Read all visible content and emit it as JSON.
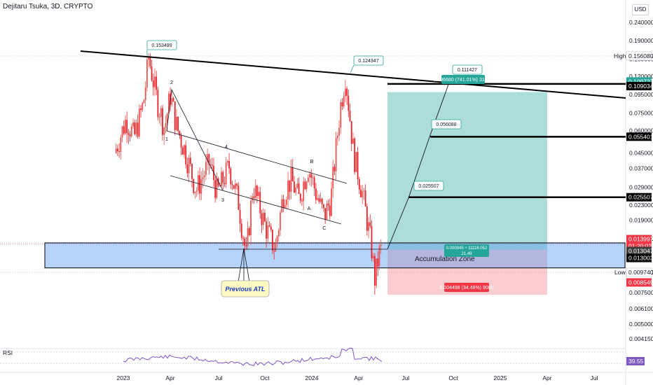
{
  "header": {
    "title": "Dejitaru Tsuka, 3D, CRYPTO",
    "currency": "USD"
  },
  "price_axis": {
    "ticks": [
      "0.240000",
      "0.190000",
      "0.150000",
      "0.120000",
      "0.095000",
      "0.075000",
      "0.060000",
      "0.045000",
      "0.037000",
      "0.029000",
      "0.023000",
      "0.019000",
      "0.015000",
      "0.009740",
      "0.007500",
      "0.006100",
      "0.005000",
      "0.004150"
    ],
    "labels": {
      "high": "High",
      "low": "Low"
    }
  },
  "price_tags": [
    {
      "value": "0.156080",
      "bg": "#ffffff",
      "fg": "#131722",
      "border": "#cccccc"
    },
    {
      "value": "0.109727",
      "bg": "#26a69a",
      "fg": "#ffffff"
    },
    {
      "value": "0.109034",
      "bg": "#000000",
      "fg": "#ffffff"
    },
    {
      "value": "0.055401",
      "bg": "#000000",
      "fg": "#ffffff"
    },
    {
      "value": "0.025507",
      "bg": "#000000",
      "fg": "#ffffff"
    },
    {
      "value": "0.013997",
      "bg": "#f23645",
      "fg": "#ffffff"
    },
    {
      "value": "01:20:02",
      "bg": "#f23645",
      "fg": "#ffffff"
    },
    {
      "value": "0.013047",
      "bg": "#3c3c3c",
      "fg": "#ffffff"
    },
    {
      "value": "0.013003",
      "bg": "#000000",
      "fg": "#ffffff"
    },
    {
      "value": "0.009740",
      "bg": "#ffffff",
      "fg": "#131722",
      "border": "#cccccc"
    },
    {
      "value": "0.008549",
      "bg": "#f23645",
      "fg": "#ffffff"
    }
  ],
  "time_axis": {
    "ticks": [
      "2023",
      "Apr",
      "Jul",
      "Oct",
      "2024",
      "Apr",
      "Jul",
      "Oct",
      "2025",
      "Apr",
      "Jul"
    ]
  },
  "annotations": {
    "callouts": [
      "0.153499",
      "0.124347",
      "0.111427",
      "0.056088",
      "0.025507"
    ],
    "target_label": "0.096680 (741.01%) 31494",
    "position_label_1": "0.000945 ÷ 11116.052",
    "position_label_2": "21.49",
    "stop_label": "0.004498 (34.48%) 9000",
    "zone_label": "Accumulation Zone",
    "previous_atl": "Previous ATL",
    "wave_labels": [
      "2",
      "1",
      "4",
      "3",
      "B",
      "A",
      "C"
    ]
  },
  "rsi": {
    "label": "RSI",
    "value": "39.55"
  },
  "colors": {
    "up": "#26a69a",
    "down": "#ef5350",
    "candle_red": "#e8222b",
    "target_zone": "#26a69a",
    "stop_zone": "#f23645",
    "accumulation": "#5c9df0",
    "rsi_line": "#7e57c2"
  },
  "chart_data": {
    "type": "candlestick",
    "symbol": "Dejitaru Tsuka",
    "interval": "3D",
    "exchange": "CRYPTO",
    "y_scale": "log",
    "ylim": [
      0.0037,
      0.3
    ],
    "x_range": [
      "2022-11",
      "2025-09"
    ],
    "series": [
      {
        "name": "price_path",
        "points": [
          [
            "2022-12-18",
            0.045
          ],
          [
            "2023-01-10",
            0.07
          ],
          [
            "2023-01-25",
            0.055
          ],
          [
            "2023-02-12",
            0.085
          ],
          [
            "2023-02-22",
            0.1535
          ],
          [
            "2023-03-10",
            0.09
          ],
          [
            "2023-03-25",
            0.062
          ],
          [
            "2023-04-05",
            0.095
          ],
          [
            "2023-04-18",
            0.062
          ],
          [
            "2023-05-05",
            0.045
          ],
          [
            "2023-05-25",
            0.028
          ],
          [
            "2023-06-20",
            0.04
          ],
          [
            "2023-07-05",
            0.027
          ],
          [
            "2023-07-28",
            0.038
          ],
          [
            "2023-08-15",
            0.024
          ],
          [
            "2023-08-30",
            0.012
          ],
          [
            "2023-09-12",
            0.03
          ],
          [
            "2023-10-05",
            0.018
          ],
          [
            "2023-10-25",
            0.013
          ],
          [
            "2023-11-10",
            0.027
          ],
          [
            "2023-11-25",
            0.032
          ],
          [
            "2023-12-10",
            0.025
          ],
          [
            "2023-12-28",
            0.038
          ],
          [
            "2024-01-12",
            0.027
          ],
          [
            "2024-01-28",
            0.02
          ],
          [
            "2024-02-10",
            0.025
          ],
          [
            "2024-02-28",
            0.08
          ],
          [
            "2024-03-09",
            0.1243
          ],
          [
            "2024-03-25",
            0.045
          ],
          [
            "2024-04-10",
            0.028
          ],
          [
            "2024-04-28",
            0.014
          ],
          [
            "2024-05-05",
            0.009
          ],
          [
            "2024-05-15",
            0.013
          ]
        ]
      },
      {
        "name": "RSI",
        "range": [
          0,
          100
        ],
        "value": 39.55
      }
    ],
    "levels": [
      {
        "label": "High",
        "value": 0.15608
      },
      {
        "label": "target",
        "value": 0.109034
      },
      {
        "label": "TP2",
        "value": 0.055401
      },
      {
        "label": "TP1",
        "value": 0.025507
      },
      {
        "label": "current",
        "value": 0.013047
      },
      {
        "label": "entry",
        "value": 0.013003
      },
      {
        "label": "Low",
        "value": 0.00974
      },
      {
        "label": "stop",
        "value": 0.008549
      }
    ],
    "accumulation_zone": [
      0.0103,
      0.0142
    ],
    "position": {
      "entry": 0.013003,
      "target": 0.109727,
      "stop": 0.008549,
      "target_pct": 741.01,
      "stop_pct": 34.48,
      "ratio": 21.49
    }
  }
}
